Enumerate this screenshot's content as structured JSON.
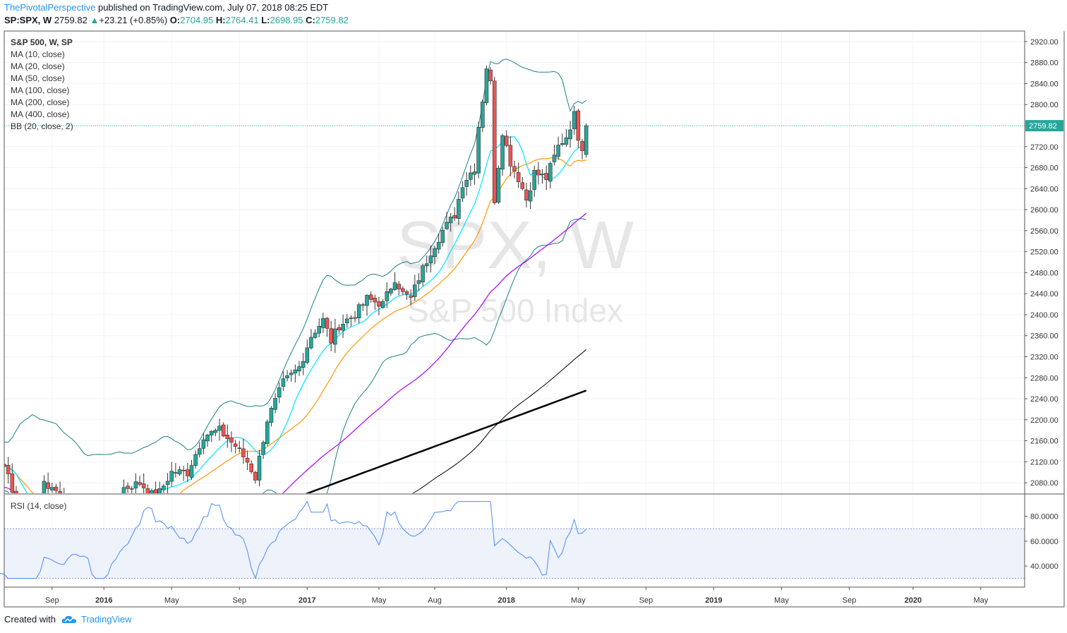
{
  "header": {
    "author": "ThePivotalPerspective",
    "published": "published on TradingView.com, July 07, 2018 08:25 EDT"
  },
  "quote": {
    "symbol": "SP:SPX, W",
    "last": "2759.82",
    "change": "+23.21 (+0.85%)",
    "o_label": "O:",
    "o": "2704.95",
    "h_label": "H:",
    "h": "2764.41",
    "l_label": "L:",
    "l": "2698.95",
    "c_label": "C:",
    "c": "2759.82"
  },
  "legend": [
    "S&P 500, W, SP",
    "MA (10, close)",
    "MA (20, close)",
    "MA (50, close)",
    "MA (100, close)",
    "MA (200, close)",
    "MA (400, close)",
    "BB (20, close, 2)"
  ],
  "watermark": {
    "main": "SPX, W",
    "sub": "S&P 500 Index"
  },
  "footer": {
    "created_with": "Created with",
    "brand": "TradingView"
  },
  "colors": {
    "up": "#26a69a",
    "down": "#ef5350",
    "ma10": "#00e5ff",
    "ma20": "#ff9800",
    "ma50": "#aa00ff",
    "ma100": "#000000",
    "bb": "#1b7f8c",
    "rsi": "#4c8bf5"
  },
  "chart_data": [
    {
      "type": "candlestick",
      "title": "S&P 500, W, SP",
      "last_price": 2759.82,
      "last_price_label": "2759.82",
      "y_ticks": [
        "2920.00",
        "2880.00",
        "2840.00",
        "2800.00",
        "2760.00",
        "2720.00",
        "2680.00",
        "2640.00",
        "2600.00",
        "2560.00",
        "2520.00",
        "2480.00",
        "2440.00",
        "2400.00",
        "2360.00",
        "2320.00",
        "2280.00",
        "2240.00",
        "2200.00",
        "2160.00",
        "2120.00",
        "2080.00"
      ],
      "y_tick_values": [
        2920,
        2880,
        2840,
        2800,
        2760,
        2720,
        2680,
        2640,
        2600,
        2560,
        2520,
        2480,
        2440,
        2400,
        2360,
        2320,
        2280,
        2240,
        2200,
        2160,
        2120,
        2080
      ],
      "ylim": [
        2060,
        2940
      ],
      "x_ticks": [
        "Sep",
        "2016",
        "May",
        "Sep",
        "2017",
        "May",
        "Aug",
        "2018",
        "May",
        "Sep",
        "2019",
        "May",
        "Sep",
        "2020",
        "May"
      ],
      "x_tick_weeks": [
        12,
        25,
        42,
        59,
        76,
        94,
        108,
        126,
        144,
        161,
        178,
        195,
        212,
        228,
        245
      ],
      "xlim_weeks": [
        0,
        256
      ],
      "candles": [],
      "ma10": [],
      "ma20": [],
      "ma50": [],
      "ma100": [],
      "ma200": [],
      "bb_upper": [],
      "bb_lower": [],
      "note_series": "candles in [open,high,low,close] per week index"
    },
    {
      "type": "line",
      "title": "RSI (14, close)",
      "y_ticks": [
        "80.0000",
        "60.0000",
        "40.0000"
      ],
      "y_tick_values": [
        80,
        60,
        40
      ],
      "ylim": [
        23,
        98
      ],
      "band": [
        30,
        70
      ],
      "values": []
    }
  ]
}
